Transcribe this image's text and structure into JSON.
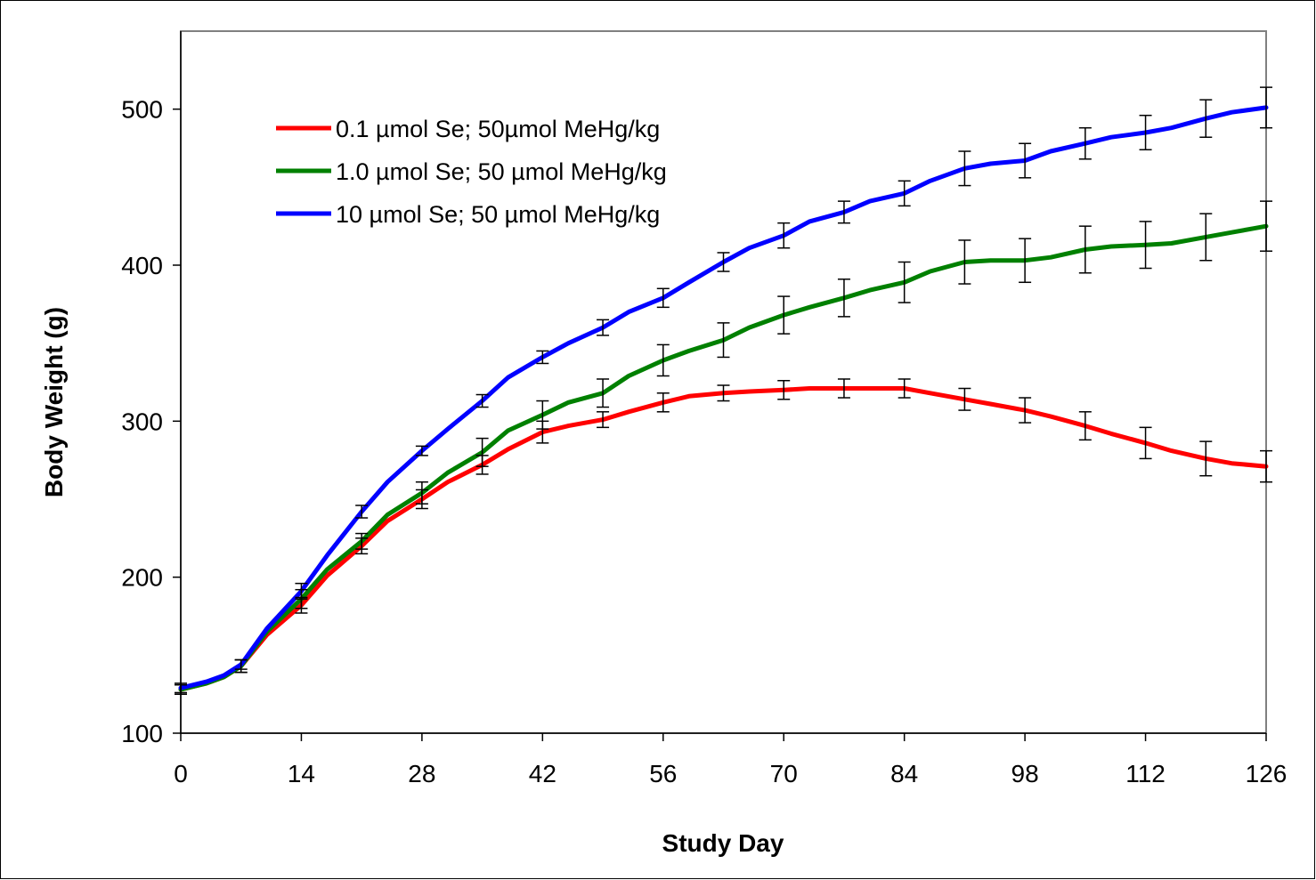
{
  "chart_data": {
    "type": "line",
    "xlabel": "Study Day",
    "ylabel": "Body Weight (g)",
    "xlim": [
      0,
      126
    ],
    "ylim": [
      100,
      550
    ],
    "xticks": [
      0,
      14,
      28,
      42,
      56,
      70,
      84,
      98,
      112,
      126
    ],
    "yticks": [
      100,
      200,
      300,
      400,
      500
    ],
    "grid": false,
    "legend_position": "top-left",
    "series": [
      {
        "name": "0.1 µmol Se; 50µmol MeHg/kg",
        "color": "#ff0000",
        "x": [
          0,
          3,
          5,
          7,
          10,
          14,
          17,
          21,
          24,
          28,
          31,
          35,
          38,
          42,
          45,
          49,
          52,
          56,
          59,
          63,
          66,
          70,
          73,
          77,
          80,
          84,
          87,
          91,
          94,
          98,
          101,
          105,
          108,
          112,
          115,
          119,
          122,
          126
        ],
        "y": [
          128,
          132,
          136,
          143,
          163,
          182,
          201,
          220,
          236,
          250,
          261,
          272,
          282,
          293,
          297,
          301,
          306,
          312,
          316,
          318,
          319,
          320,
          321,
          321,
          321,
          321,
          318,
          314,
          311,
          307,
          303,
          297,
          292,
          286,
          281,
          276,
          273,
          271
        ],
        "errors": [
          3,
          null,
          null,
          4,
          null,
          5,
          null,
          5,
          null,
          6,
          null,
          6,
          null,
          7,
          null,
          5,
          null,
          6,
          null,
          5,
          null,
          6,
          null,
          6,
          null,
          6,
          null,
          7,
          null,
          8,
          null,
          9,
          null,
          10,
          null,
          11,
          null,
          10
        ]
      },
      {
        "name": "1.0 µmol Se; 50 µmol MeHg/kg",
        "color": "#008000",
        "x": [
          0,
          3,
          5,
          7,
          10,
          14,
          17,
          21,
          24,
          28,
          31,
          35,
          38,
          42,
          45,
          49,
          52,
          56,
          59,
          63,
          66,
          70,
          73,
          77,
          80,
          84,
          87,
          91,
          94,
          98,
          101,
          105,
          108,
          112,
          115,
          119,
          122,
          126
        ],
        "y": [
          128,
          132,
          136,
          143,
          165,
          186,
          205,
          223,
          240,
          254,
          267,
          280,
          294,
          304,
          312,
          318,
          329,
          339,
          345,
          352,
          360,
          368,
          373,
          379,
          384,
          389,
          396,
          402,
          403,
          403,
          405,
          410,
          412,
          413,
          414,
          418,
          421,
          425
        ],
        "errors": [
          3,
          null,
          null,
          4,
          null,
          6,
          null,
          5,
          null,
          7,
          null,
          9,
          null,
          9,
          null,
          9,
          null,
          10,
          null,
          11,
          null,
          12,
          null,
          12,
          null,
          13,
          null,
          14,
          null,
          14,
          null,
          15,
          null,
          15,
          null,
          15,
          null,
          16
        ]
      },
      {
        "name": "10 µmol Se; 50 µmol MeHg/kg",
        "color": "#0000ff",
        "x": [
          0,
          3,
          5,
          7,
          10,
          14,
          17,
          21,
          24,
          28,
          31,
          35,
          38,
          42,
          45,
          49,
          52,
          56,
          59,
          63,
          66,
          70,
          73,
          77,
          80,
          84,
          87,
          91,
          94,
          98,
          101,
          105,
          108,
          112,
          115,
          119,
          122,
          126
        ],
        "y": [
          129,
          133,
          137,
          144,
          167,
          191,
          214,
          242,
          261,
          281,
          295,
          313,
          328,
          341,
          350,
          360,
          370,
          379,
          389,
          402,
          411,
          419,
          428,
          434,
          441,
          446,
          454,
          462,
          465,
          467,
          473,
          478,
          482,
          485,
          488,
          494,
          498,
          501
        ],
        "errors": [
          3,
          null,
          null,
          3,
          null,
          5,
          null,
          4,
          null,
          3,
          null,
          4,
          null,
          4,
          null,
          5,
          null,
          6,
          null,
          6,
          null,
          8,
          null,
          7,
          null,
          8,
          null,
          11,
          null,
          11,
          null,
          10,
          null,
          11,
          null,
          12,
          null,
          13
        ]
      }
    ]
  }
}
